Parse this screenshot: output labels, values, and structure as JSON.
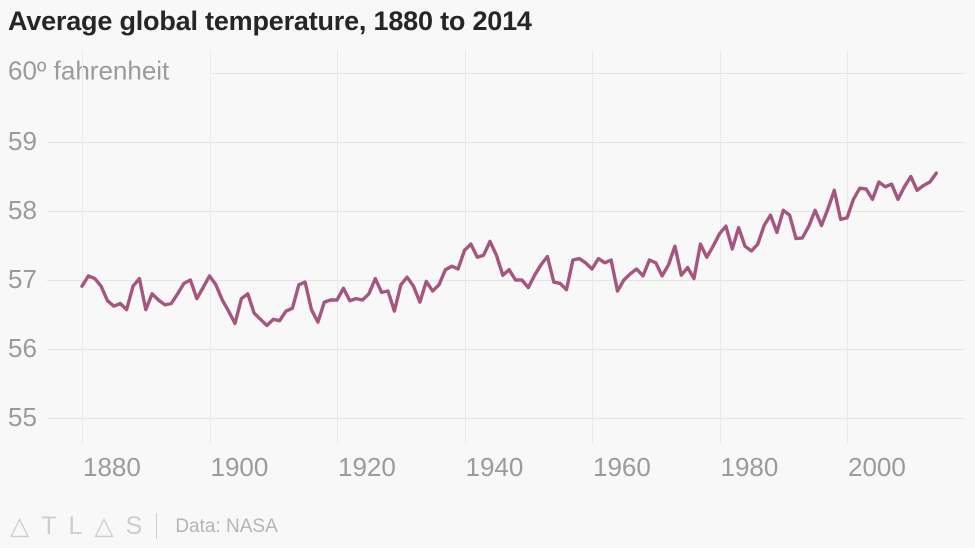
{
  "chart_data": {
    "type": "line",
    "title": "Average global temperature, 1880 to 2014",
    "xlabel": "",
    "ylabel": "fahrenheit",
    "legend": "none",
    "grid": "on",
    "x_axis": {
      "min": 1880,
      "max": 2014,
      "ticks": [
        1880,
        1900,
        1920,
        1940,
        1960,
        1980,
        2000
      ],
      "tick_label_alignment": "left-of-gridline"
    },
    "y_axis": {
      "ticks": [
        55,
        56,
        57,
        58,
        59,
        60
      ],
      "top_label": "60º fahrenheit",
      "ylim": [
        54.75,
        60
      ]
    },
    "series": [
      {
        "name": "Average global temperature (ºF)",
        "color": "#a5567f",
        "x_start": 1880,
        "x_step": 1,
        "x_end": 2014,
        "values": [
          56.91,
          57.06,
          57.02,
          56.91,
          56.7,
          56.62,
          56.66,
          56.57,
          56.91,
          57.02,
          56.57,
          56.8,
          56.71,
          56.64,
          56.66,
          56.8,
          56.95,
          57.0,
          56.73,
          56.89,
          57.06,
          56.93,
          56.71,
          56.55,
          56.37,
          56.73,
          56.8,
          56.52,
          56.43,
          56.34,
          56.43,
          56.41,
          56.55,
          56.59,
          56.93,
          56.97,
          56.57,
          56.39,
          56.68,
          56.71,
          56.71,
          56.88,
          56.7,
          56.73,
          56.71,
          56.8,
          57.02,
          56.82,
          56.84,
          56.55,
          56.93,
          57.04,
          56.91,
          56.68,
          56.98,
          56.84,
          56.93,
          57.15,
          57.2,
          57.16,
          57.43,
          57.52,
          57.33,
          57.36,
          57.56,
          57.36,
          57.07,
          57.15,
          57.0,
          57.0,
          56.89,
          57.07,
          57.22,
          57.34,
          56.97,
          56.95,
          56.86,
          57.29,
          57.31,
          57.25,
          57.16,
          57.31,
          57.25,
          57.29,
          56.84,
          57.0,
          57.09,
          57.16,
          57.06,
          57.29,
          57.25,
          57.06,
          57.22,
          57.49,
          57.07,
          57.18,
          57.02,
          57.52,
          57.33,
          57.49,
          57.67,
          57.78,
          57.45,
          57.76,
          57.49,
          57.42,
          57.52,
          57.79,
          57.94,
          57.69,
          58.01,
          57.94,
          57.6,
          57.61,
          57.78,
          58.01,
          57.79,
          58.03,
          58.3,
          57.88,
          57.9,
          58.17,
          58.33,
          58.32,
          58.17,
          58.42,
          58.35,
          58.39,
          58.17,
          58.35,
          58.5,
          58.3,
          58.37,
          58.42,
          58.55
        ]
      }
    ]
  },
  "colors": {
    "background": "#f8f8f8",
    "line": "#a5567f",
    "title_text": "#262626",
    "axis_text": "#9b9b9b",
    "h_gridline": "#e4e4e4",
    "v_gridline": "#e9e9e9",
    "footer_text": "#cdcdcd",
    "source_text": "#b5b5b5"
  },
  "footer": {
    "logo_text": "△TL△S",
    "source": "Data: NASA"
  }
}
